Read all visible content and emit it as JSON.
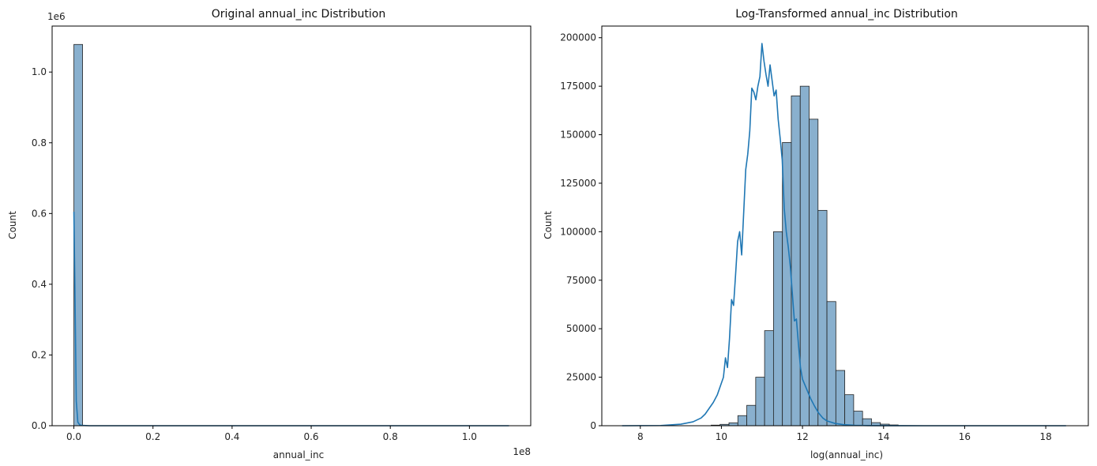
{
  "chart_data": [
    {
      "type": "bar",
      "title": "Original annual_inc Distribution",
      "xlabel": "annual_inc",
      "ylabel": "Count",
      "x_offset_label": "1e8",
      "y_offset_label": "1e6",
      "xlim": [
        -0.055,
        1.155
      ],
      "ylim": [
        0,
        1.13
      ],
      "x_ticks": [
        0.0,
        0.2,
        0.4,
        0.6,
        0.8,
        1.0
      ],
      "x_tick_labels": [
        "0.0",
        "0.2",
        "0.4",
        "0.6",
        "0.8",
        "1.0"
      ],
      "y_ticks": [
        0.0,
        0.2,
        0.4,
        0.6,
        0.8,
        1.0
      ],
      "y_tick_labels": [
        "0.0",
        "0.2",
        "0.4",
        "0.6",
        "0.8",
        "1.0"
      ],
      "bins": [
        {
          "x0": 0.0,
          "x1": 0.022,
          "value": 1.078
        }
      ],
      "kde": {
        "x": [
          0.0,
          0.003,
          0.006,
          0.01,
          0.015,
          0.02,
          0.04,
          0.1,
          0.3,
          0.6,
          0.9,
          1.1
        ],
        "y": [
          0.605,
          0.35,
          0.07,
          0.01,
          0.002,
          0.001,
          0.0,
          0.0,
          0.0,
          0.0,
          0.0,
          0.0
        ]
      }
    },
    {
      "type": "bar",
      "title": "Log-Transformed annual_inc Distribution",
      "xlabel": "log(annual_inc)",
      "ylabel": "Count",
      "xlim": [
        7.05,
        19.05
      ],
      "ylim": [
        0,
        206000
      ],
      "x_ticks": [
        8,
        10,
        12,
        14,
        16,
        18
      ],
      "x_tick_labels": [
        "8",
        "10",
        "12",
        "14",
        "16",
        "18"
      ],
      "y_ticks": [
        0,
        25000,
        50000,
        75000,
        100000,
        125000,
        150000,
        175000,
        200000
      ],
      "y_tick_labels": [
        "0",
        "25000",
        "50000",
        "75000",
        "100000",
        "125000",
        "150000",
        "175000",
        "200000"
      ],
      "bin_start": 7.55,
      "bin_width": 0.2197,
      "values": [
        0,
        0,
        0,
        0,
        0,
        0,
        0,
        0,
        0,
        0,
        300,
        700,
        1500,
        5200,
        10500,
        25000,
        49000,
        100000,
        146000,
        170000,
        175000,
        158000,
        111000,
        64000,
        28500,
        16000,
        7500,
        3600,
        1600,
        800,
        400,
        200,
        100,
        60,
        40,
        20,
        10,
        5,
        0,
        0,
        0,
        0,
        0,
        0,
        0,
        0,
        0,
        0,
        0,
        0
      ],
      "kde": {
        "x": [
          7.55,
          8.5,
          9.0,
          9.3,
          9.5,
          9.6,
          9.7,
          9.8,
          9.9,
          10.0,
          10.05,
          10.1,
          10.15,
          10.2,
          10.25,
          10.3,
          10.35,
          10.4,
          10.45,
          10.5,
          10.55,
          10.6,
          10.65,
          10.7,
          10.75,
          10.8,
          10.85,
          10.9,
          10.95,
          11.0,
          11.05,
          11.1,
          11.15,
          11.2,
          11.25,
          11.3,
          11.35,
          11.4,
          11.45,
          11.5,
          11.55,
          11.6,
          11.65,
          11.7,
          11.75,
          11.8,
          11.85,
          11.9,
          11.95,
          12.0,
          12.1,
          12.2,
          12.3,
          12.4,
          12.5,
          12.6,
          12.8,
          13.0,
          13.3,
          13.6,
          14.0,
          15.0,
          16.0,
          17.0,
          18.5
        ],
        "y": [
          0,
          100,
          800,
          2000,
          4000,
          6000,
          9000,
          12000,
          16000,
          22000,
          25000,
          35000,
          30000,
          45000,
          65000,
          62000,
          78000,
          95000,
          100000,
          88000,
          110000,
          132000,
          140000,
          152000,
          174000,
          172000,
          168000,
          175000,
          180000,
          197000,
          188000,
          181000,
          175000,
          186000,
          178000,
          170000,
          173000,
          158000,
          148000,
          137000,
          112000,
          100000,
          92000,
          82000,
          68000,
          54000,
          55000,
          42000,
          30000,
          24000,
          19000,
          14000,
          10000,
          6500,
          4000,
          2500,
          1200,
          600,
          200,
          80,
          20,
          0,
          0,
          0,
          0
        ]
      }
    }
  ]
}
